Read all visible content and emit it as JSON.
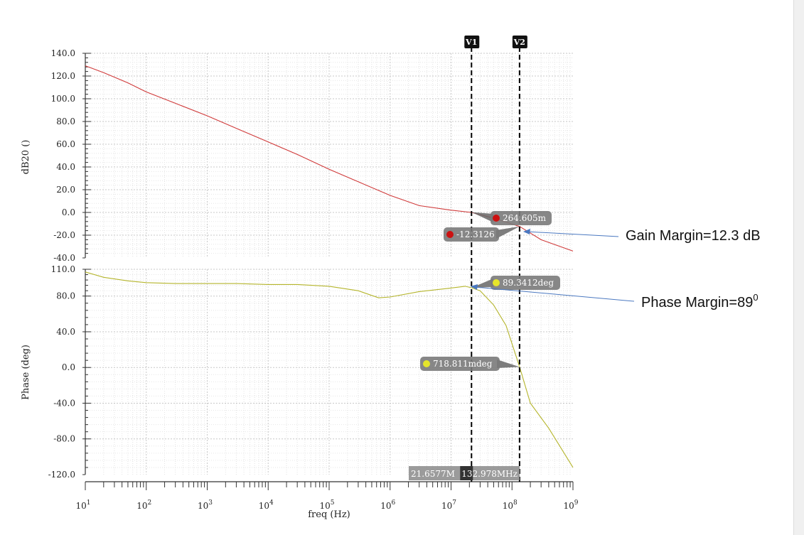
{
  "chart_data": {
    "type": "line",
    "x_scale": "log",
    "xlabel": "freq (Hz)",
    "x_ticks": [
      {
        "base": "10",
        "exp": "1",
        "value": 10
      },
      {
        "base": "10",
        "exp": "2",
        "value": 100
      },
      {
        "base": "10",
        "exp": "3",
        "value": 1000
      },
      {
        "base": "10",
        "exp": "4",
        "value": 10000
      },
      {
        "base": "10",
        "exp": "5",
        "value": 100000
      },
      {
        "base": "10",
        "exp": "6",
        "value": 1000000
      },
      {
        "base": "10",
        "exp": "7",
        "value": 10000000
      },
      {
        "base": "10",
        "exp": "8",
        "value": 100000000
      },
      {
        "base": "10",
        "exp": "9",
        "value": 1000000000
      }
    ],
    "panels": [
      {
        "name": "gain",
        "ylabel": "dB20 ()",
        "ylim": [
          -40,
          140
        ],
        "y_ticks": [
          "140.0",
          "120.0",
          "100.0",
          "80.0",
          "60.0",
          "40.0",
          "20.0",
          "0.0",
          "-20.0",
          "-40.0"
        ],
        "y_tick_values": [
          140,
          120,
          100,
          80,
          60,
          40,
          20,
          0,
          -20,
          -40
        ],
        "series": [
          {
            "color": "#d03a3a",
            "x": [
              10,
              20,
              50,
              100,
              300,
              1000,
              3000,
              10000,
              30000,
              100000,
              300000,
              1000000,
              3000000,
              10000000,
              21657700,
              50000000,
              132978000,
              300000000,
              1000000000
            ],
            "y": [
              129,
              123,
              114,
              106,
              96,
              85,
              74,
              62,
              51,
              38,
              27,
              15,
              6,
              2,
              0,
              -5,
              -12.3126,
              -24,
              -34
            ]
          }
        ]
      },
      {
        "name": "phase",
        "ylabel": "Phase (deg)",
        "ylim": [
          -120,
          110
        ],
        "y_ticks": [
          "110.0",
          "80.0",
          "40.0",
          "0.0",
          "-40.0",
          "-80.0",
          "-120.0"
        ],
        "y_tick_values": [
          110,
          80,
          40,
          0,
          -40,
          -80,
          -120
        ],
        "series": [
          {
            "color": "#b5b52c",
            "x": [
              10,
              20,
              50,
              100,
              300,
              1000,
              3000,
              10000,
              30000,
              100000,
              300000,
              650000,
              1000000,
              3000000,
              10000000,
              17000000,
              21657700,
              30000000,
              50000000,
              80000000,
              132978000,
              200000000,
              400000000,
              1000000000
            ],
            "y": [
              107,
              101,
              97,
              95,
              94,
              94,
              94,
              93,
              93,
              91,
              86,
              78,
              79,
              85,
              89,
              91,
              89.3412,
              86,
              70,
              47,
              0.718811,
              -40,
              -68,
              -112
            ]
          }
        ]
      }
    ],
    "cursors": [
      {
        "label": "V1",
        "x": 21657700,
        "readout": "21.6577M"
      },
      {
        "label": "V2",
        "x": 132978000,
        "readout": "132.978MHz"
      }
    ],
    "markers": [
      {
        "panel": "gain",
        "x": 21657700,
        "y": 0.264605,
        "text": "264.605m",
        "dot": "#cc1111"
      },
      {
        "panel": "gain",
        "x": 132978000,
        "y": -12.3126,
        "text": "-12.3126",
        "dot": "#cc1111"
      },
      {
        "panel": "phase",
        "x": 21657700,
        "y": 89.3412,
        "text": "89.3412deg",
        "dot": "#e5e52a"
      },
      {
        "panel": "phase",
        "x": 132978000,
        "y": 0.718811,
        "text": "718.811mdeg",
        "dot": "#e5e52a"
      }
    ],
    "annotations": [
      {
        "text": "Gain Margin=12.3 dB",
        "sup": ""
      },
      {
        "text": "Phase Margin=89",
        "sup": "0"
      }
    ]
  }
}
